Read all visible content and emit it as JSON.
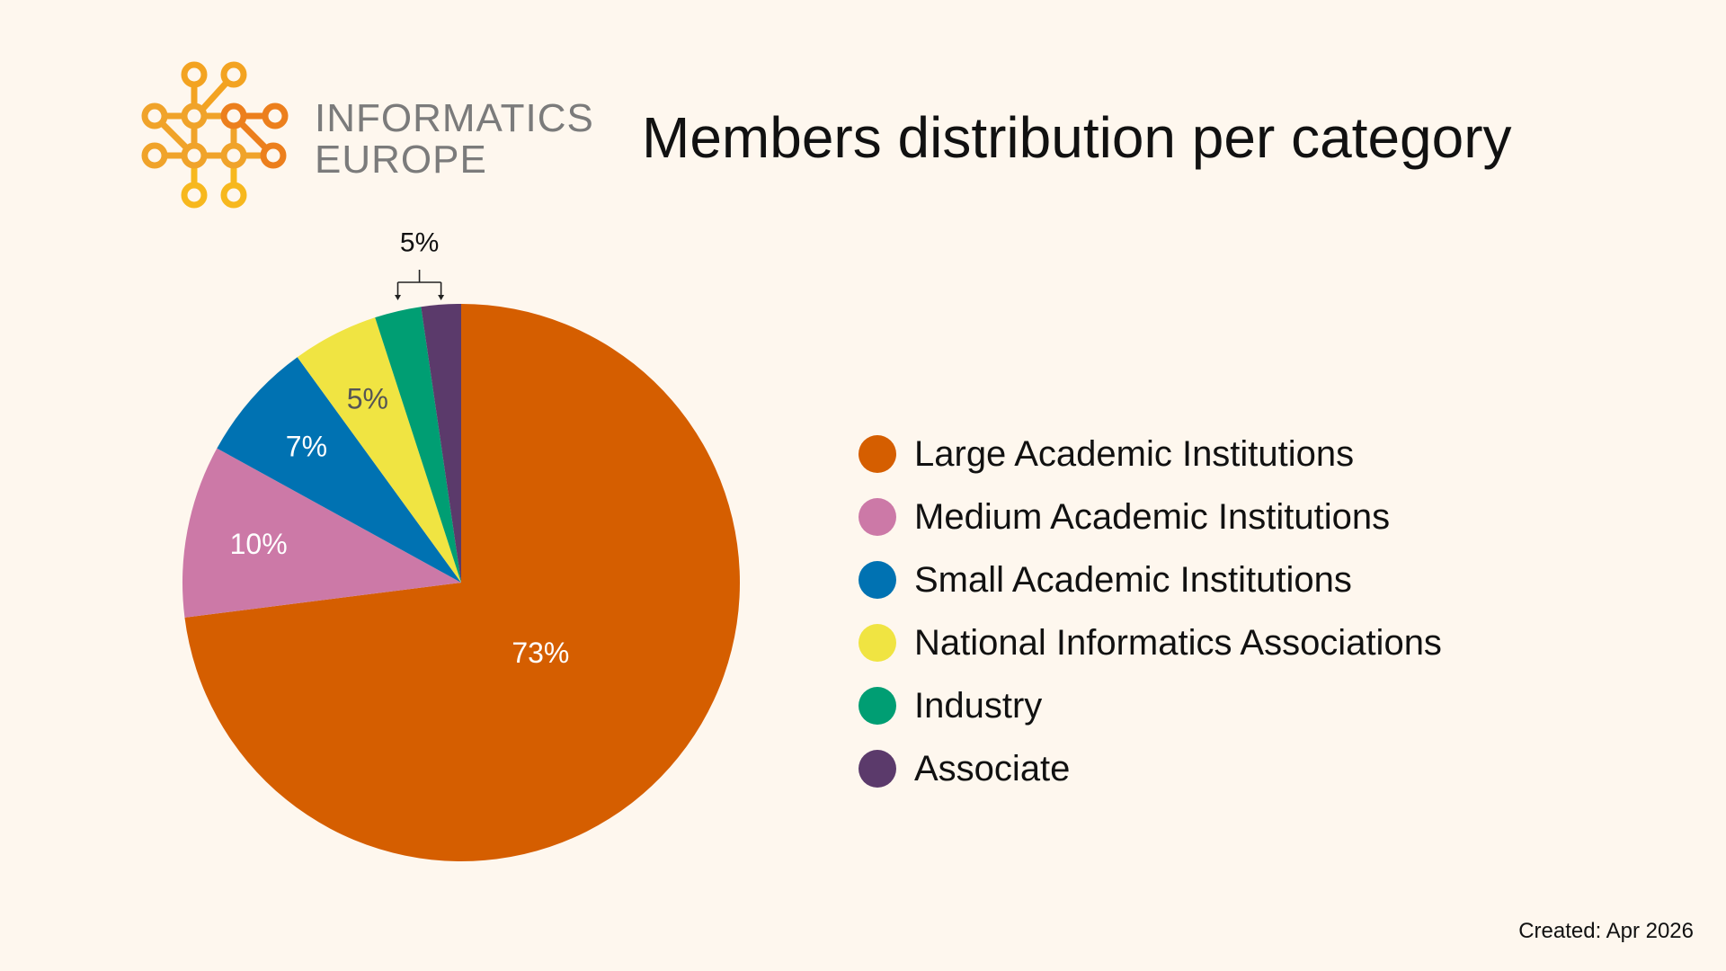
{
  "logo": {
    "line1": "INFORMATICS",
    "line2": "EUROPE"
  },
  "footer": {
    "created": "Created: Apr 2026"
  },
  "colors": {
    "background": "#fef7ee",
    "logo_orange": "#f0a32a",
    "logo_text": "#7b7b7b"
  },
  "chart_data": {
    "type": "pie",
    "title": "Members distribution per category",
    "categories": [
      "Large Academic Institutions",
      "Medium Academic Institutions",
      "Small Academic Institutions",
      "National Informatics Associations",
      "Industry",
      "Associate"
    ],
    "values": [
      73,
      10,
      7,
      5,
      2.7,
      2.3
    ],
    "colors": [
      "#d55e00",
      "#cc79a7",
      "#0072b2",
      "#f0e442",
      "#009e73",
      "#5b3a6b"
    ],
    "data_labels": [
      "73%",
      "10%",
      "7%",
      "5%",
      "",
      ""
    ],
    "label_colors": [
      "#ffffff",
      "#ffffff",
      "#ffffff",
      "#555555",
      "#ffffff",
      "#ffffff"
    ],
    "combined_label": "5%",
    "start_angle_deg": 0,
    "direction": "clockwise",
    "legend_position": "right"
  }
}
